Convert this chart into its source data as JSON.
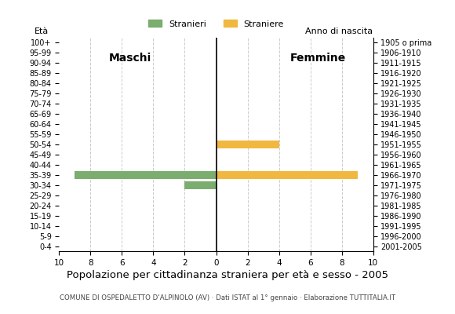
{
  "age_groups": [
    "100+",
    "95-99",
    "90-94",
    "85-89",
    "80-84",
    "75-79",
    "70-74",
    "65-69",
    "60-64",
    "55-59",
    "50-54",
    "45-49",
    "40-44",
    "35-39",
    "30-34",
    "25-29",
    "20-24",
    "15-19",
    "10-14",
    "5-9",
    "0-4"
  ],
  "birth_years": [
    "1905 o prima",
    "1906-1910",
    "1911-1915",
    "1916-1920",
    "1921-1925",
    "1926-1930",
    "1931-1935",
    "1936-1940",
    "1941-1945",
    "1946-1950",
    "1951-1955",
    "1956-1960",
    "1961-1965",
    "1966-1970",
    "1971-1975",
    "1976-1980",
    "1981-1985",
    "1986-1990",
    "1991-1995",
    "1996-2000",
    "2001-2005"
  ],
  "males": [
    0,
    0,
    0,
    0,
    0,
    0,
    0,
    0,
    0,
    0,
    0,
    0,
    0,
    9,
    2,
    0,
    0,
    0,
    0,
    0,
    0
  ],
  "females": [
    0,
    0,
    0,
    0,
    0,
    0,
    0,
    0,
    0,
    0,
    4,
    0,
    0,
    9,
    0,
    0,
    0,
    0,
    0,
    0,
    0
  ],
  "male_color": "#7aad6e",
  "female_color": "#f0b840",
  "title": "Popolazione per cittadinanza straniera per età e sesso - 2005",
  "subtitle": "COMUNE DI OSPEDALETTO D'ALPINOLO (AV) · Dati ISTAT al 1° gennaio · Elaborazione TUTTITALIA.IT",
  "ylabel_left": "Età",
  "ylabel_right": "Anno di nascita",
  "legend_male": "Stranieri",
  "legend_female": "Straniere",
  "xlim": 10,
  "maschi_label": "Maschi",
  "femmine_label": "Femmine",
  "background_color": "#ffffff",
  "grid_color": "#cccccc"
}
